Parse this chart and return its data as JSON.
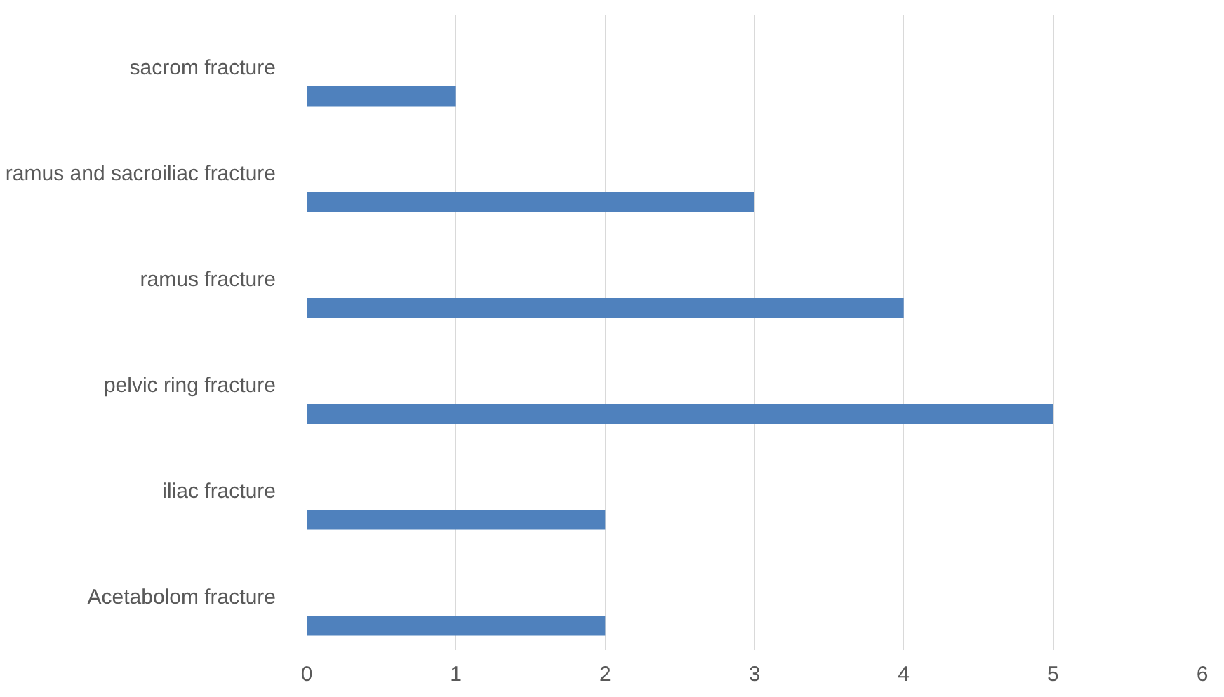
{
  "chart_data": {
    "type": "bar",
    "orientation": "horizontal",
    "categories": [
      "sacrom fracture",
      "ramus and sacroiliac fracture",
      "ramus fracture",
      "pelvic ring fracture",
      "iliac fracture",
      "Acetabolom fracture"
    ],
    "values": [
      1,
      3,
      4,
      5,
      2,
      2
    ],
    "color": "#4f81bd",
    "xlim": [
      0,
      6
    ],
    "xticks": [
      0,
      1,
      2,
      3,
      4,
      5,
      6
    ],
    "grid": "x"
  }
}
